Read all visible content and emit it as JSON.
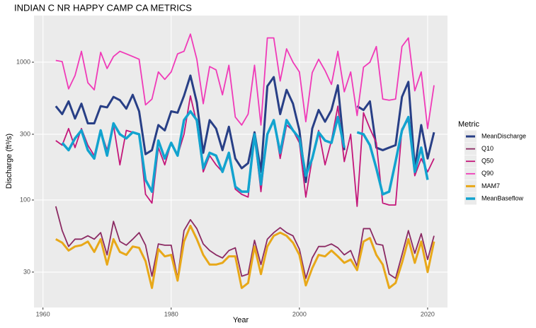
{
  "chart_data": {
    "type": "line",
    "title": "INDIAN C NR HAPPY CAMP CA  METRICS",
    "x_label": "Year",
    "y_label": "Discharge (ft³/s)",
    "legend_title": "Metric",
    "log_y": true,
    "grid": true,
    "legend": "right",
    "x": [
      1962,
      1963,
      1964,
      1965,
      1966,
      1967,
      1968,
      1969,
      1970,
      1971,
      1972,
      1973,
      1974,
      1975,
      1976,
      1977,
      1978,
      1979,
      1980,
      1981,
      1982,
      1983,
      1984,
      1985,
      1986,
      1987,
      1988,
      1989,
      1990,
      1991,
      1992,
      1993,
      1994,
      1995,
      1996,
      1997,
      1998,
      1999,
      2000,
      2001,
      2002,
      2003,
      2004,
      2005,
      2006,
      2007,
      2008,
      2009,
      2010,
      2011,
      2012,
      2013,
      2014,
      2015,
      2016,
      2017,
      2018,
      2019,
      2020,
      2021
    ],
    "xlim": [
      1958.6,
      2023.1
    ],
    "xticks": [
      1960,
      1980,
      2000,
      2020
    ],
    "ylim": [
      16.6,
      2180
    ],
    "yticks": [
      30,
      100,
      300,
      1000
    ],
    "series": [
      {
        "name": "MeanDischarge",
        "color": "#283f86",
        "linewidth": 3,
        "values": [
          480,
          420,
          520,
          390,
          500,
          360,
          360,
          480,
          470,
          560,
          530,
          460,
          580,
          440,
          215,
          230,
          350,
          320,
          440,
          430,
          570,
          800,
          510,
          220,
          380,
          330,
          230,
          340,
          200,
          170,
          185,
          310,
          160,
          670,
          780,
          420,
          630,
          500,
          320,
          135,
          330,
          450,
          370,
          450,
          680,
          230,
          null,
          480,
          450,
          520,
          240,
          230,
          240,
          250,
          560,
          720,
          170,
          350,
          200,
          310
        ]
      },
      {
        "name": "Q10",
        "color": "#8b2a63",
        "linewidth": 1.8,
        "values": [
          90,
          60,
          46,
          52,
          52,
          55,
          52,
          58,
          40,
          70,
          50,
          47,
          52,
          58,
          47,
          28,
          48,
          47,
          47,
          27,
          60,
          72,
          62,
          48,
          43,
          40,
          38,
          43,
          45,
          28,
          29,
          51,
          34,
          52,
          58,
          63,
          58,
          55,
          44,
          27,
          38,
          46,
          46,
          48,
          45,
          40,
          43,
          33,
          62,
          62,
          48,
          47,
          29,
          27,
          40,
          60,
          41,
          57,
          37,
          55
        ]
      },
      {
        "name": "Q50",
        "color": "#c4177a",
        "linewidth": 1.8,
        "values": [
          270,
          250,
          330,
          240,
          330,
          250,
          210,
          320,
          230,
          350,
          180,
          320,
          310,
          300,
          110,
          95,
          240,
          180,
          260,
          210,
          300,
          570,
          360,
          160,
          210,
          180,
          160,
          210,
          120,
          110,
          105,
          290,
          115,
          300,
          380,
          200,
          350,
          320,
          260,
          105,
          200,
          320,
          180,
          270,
          480,
          190,
          300,
          90,
          430,
          330,
          260,
          95,
          92,
          92,
          330,
          380,
          150,
          200,
          160,
          200
        ]
      },
      {
        "name": "Q90",
        "color": "#f03ab8",
        "linewidth": 1.8,
        "values": [
          1030,
          1010,
          640,
          800,
          1200,
          710,
          630,
          1180,
          900,
          1100,
          1200,
          1150,
          1100,
          1050,
          490,
          540,
          850,
          750,
          850,
          1150,
          1200,
          1600,
          1050,
          500,
          930,
          880,
          580,
          950,
          400,
          350,
          420,
          950,
          350,
          1500,
          1500,
          730,
          1250,
          1000,
          850,
          370,
          840,
          1050,
          870,
          690,
          1200,
          610,
          850,
          410,
          920,
          1000,
          1300,
          540,
          530,
          540,
          1300,
          1500,
          620,
          850,
          330,
          680
        ]
      },
      {
        "name": "MAM7",
        "color": "#e8a819",
        "linewidth": 3,
        "values": [
          52,
          49,
          43,
          46,
          47,
          50,
          42,
          52,
          34,
          52,
          42,
          40,
          46,
          45,
          36,
          23,
          44,
          39,
          40,
          26,
          50,
          65,
          52,
          40,
          34,
          34,
          35,
          39,
          39,
          23,
          25,
          46,
          29,
          46,
          55,
          58,
          55,
          49,
          40,
          24,
          32,
          40,
          39,
          43,
          39,
          35,
          37,
          31,
          50,
          53,
          40,
          34,
          23,
          25,
          35,
          52,
          35,
          50,
          30,
          50
        ]
      },
      {
        "name": "MeanBaseflow",
        "color": "#12a3cf",
        "linewidth": 3.5,
        "values": [
          null,
          260,
          230,
          280,
          320,
          230,
          200,
          320,
          210,
          360,
          300,
          280,
          310,
          300,
          140,
          115,
          270,
          200,
          260,
          210,
          380,
          440,
          380,
          170,
          220,
          210,
          160,
          220,
          125,
          115,
          115,
          300,
          130,
          300,
          380,
          220,
          380,
          320,
          280,
          150,
          200,
          310,
          270,
          260,
          400,
          240,
          null,
          310,
          300,
          250,
          170,
          110,
          115,
          190,
          320,
          400,
          160,
          240,
          140,
          null
        ]
      }
    ]
  }
}
